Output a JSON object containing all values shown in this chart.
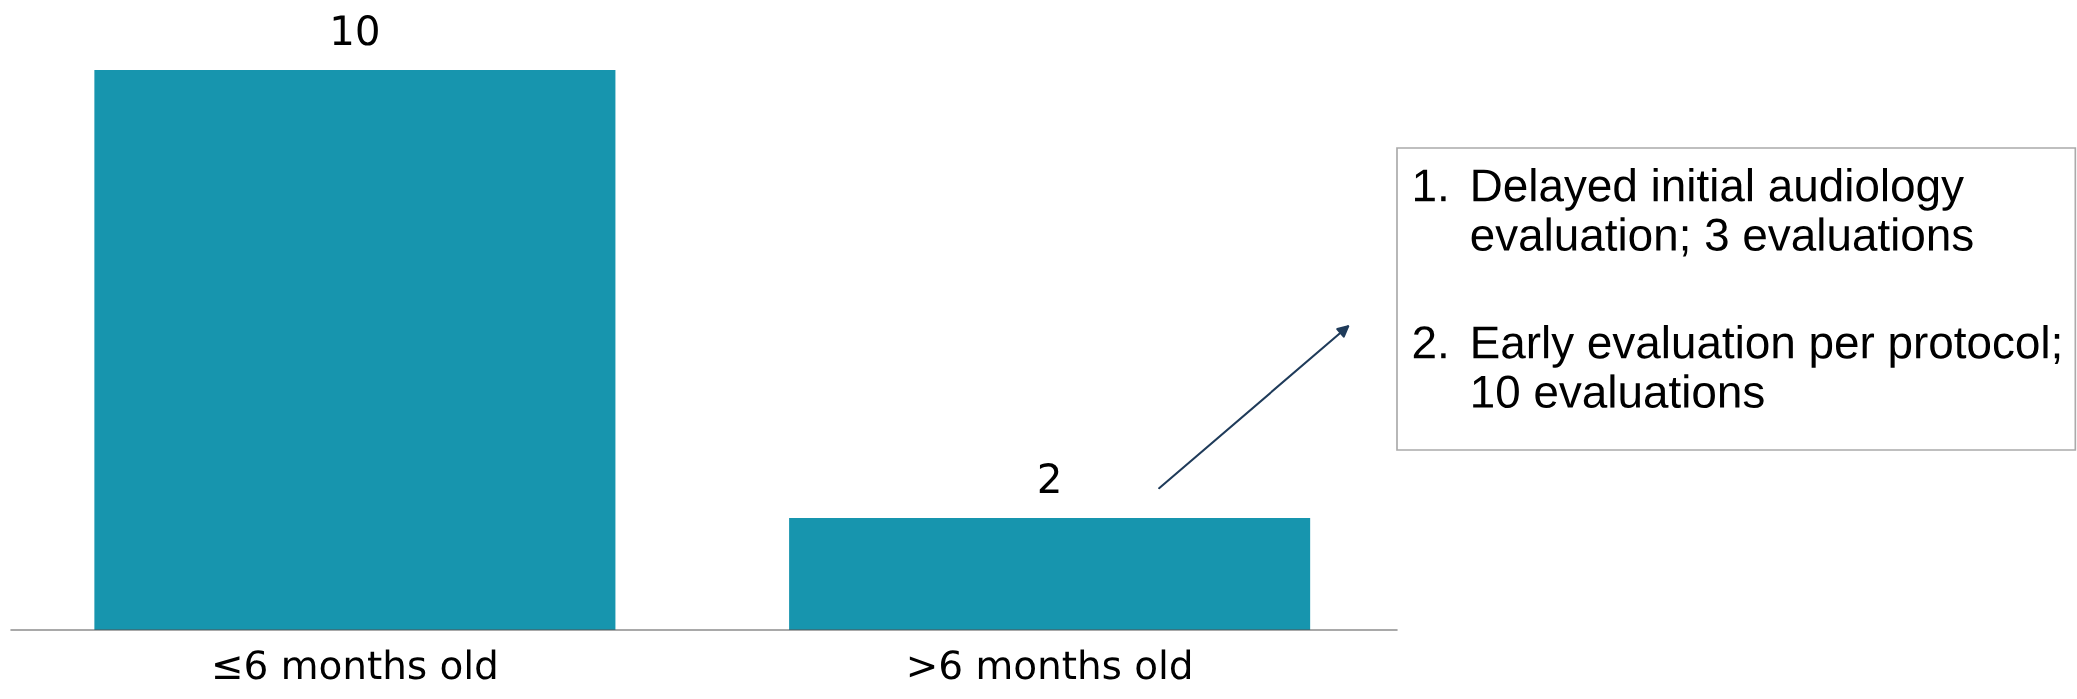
{
  "chart_data": {
    "type": "bar",
    "categories": [
      "≤6 months old",
      ">6 months old"
    ],
    "values": [
      10,
      2
    ],
    "color": "#1795ae",
    "ylim": [
      0,
      10
    ],
    "data_labels": true,
    "tick_labels": "x",
    "annotations": [
      "1. Delayed initial audiology evaluation; 3 evaluations",
      "2. Early evaluation per protocol; 10 evaluations"
    ]
  }
}
